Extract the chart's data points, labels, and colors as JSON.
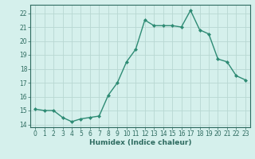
{
  "x": [
    0,
    1,
    2,
    3,
    4,
    5,
    6,
    7,
    8,
    9,
    10,
    11,
    12,
    13,
    14,
    15,
    16,
    17,
    18,
    19,
    20,
    21,
    22,
    23
  ],
  "y": [
    15.1,
    15.0,
    15.0,
    14.5,
    14.2,
    14.4,
    14.5,
    14.6,
    16.1,
    17.0,
    18.5,
    19.4,
    21.5,
    21.1,
    21.1,
    21.1,
    21.0,
    22.2,
    20.8,
    20.5,
    18.7,
    18.5,
    17.5,
    17.2
  ],
  "line_color": "#2e8b74",
  "marker": "D",
  "marker_size": 2.0,
  "bg_color": "#d5f0ec",
  "grid_color": "#b8d8d2",
  "xlabel": "Humidex (Indice chaleur)",
  "ylim": [
    13.8,
    22.6
  ],
  "yticks": [
    14,
    15,
    16,
    17,
    18,
    19,
    20,
    21,
    22
  ],
  "xticks": [
    0,
    1,
    2,
    3,
    4,
    5,
    6,
    7,
    8,
    9,
    10,
    11,
    12,
    13,
    14,
    15,
    16,
    17,
    18,
    19,
    20,
    21,
    22,
    23
  ],
  "tick_color": "#2e6b60",
  "tick_fontsize": 5.5,
  "xlabel_fontsize": 6.5,
  "line_width": 1.0
}
